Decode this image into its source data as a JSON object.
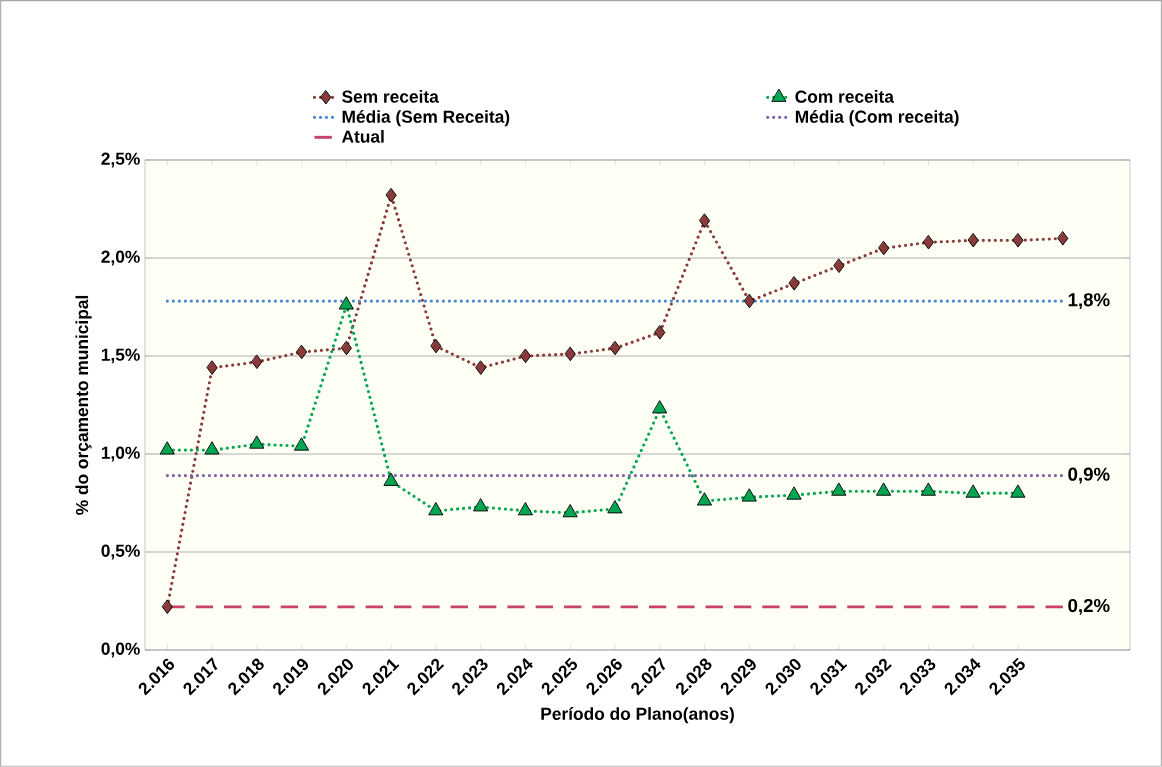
{
  "chart_data": {
    "type": "line",
    "xlabel": "Período do Plano(anos)",
    "ylabel": "% do orçamento municipal",
    "categories": [
      "2.016",
      "2.017",
      "2.018",
      "2.019",
      "2.020",
      "2.021",
      "2.022",
      "2.023",
      "2.024",
      "2.025",
      "2.026",
      "2.027",
      "2.028",
      "2.029",
      "2.030",
      "2.031",
      "2.032",
      "2.033",
      "2.034",
      "2.035",
      null,
      null
    ],
    "series": [
      {
        "name": "Sem receita",
        "color": "#8b3a3a",
        "marker": "diamond",
        "line_style": "dotted",
        "values": [
          0.22,
          1.44,
          1.47,
          1.52,
          1.54,
          2.32,
          1.55,
          1.44,
          1.5,
          1.51,
          1.54,
          1.62,
          2.19,
          1.78,
          1.87,
          1.96,
          2.05,
          2.08,
          2.09,
          2.09,
          2.1,
          null
        ]
      },
      {
        "name": "Com  receita",
        "color": "#00a650",
        "marker": "triangle",
        "line_style": "dotted",
        "values": [
          1.02,
          1.02,
          1.05,
          1.04,
          1.76,
          0.86,
          0.71,
          0.73,
          0.71,
          0.7,
          0.72,
          1.23,
          0.76,
          0.78,
          0.79,
          0.81,
          0.81,
          0.81,
          0.8,
          0.8,
          null,
          null
        ]
      },
      {
        "name": "Média  (Sem Receita)",
        "color": "#4a86d8",
        "marker": "none",
        "line_style": "dotted",
        "values": [
          1.78,
          1.78,
          1.78,
          1.78,
          1.78,
          1.78,
          1.78,
          1.78,
          1.78,
          1.78,
          1.78,
          1.78,
          1.78,
          1.78,
          1.78,
          1.78,
          1.78,
          1.78,
          1.78,
          1.78,
          1.78,
          null
        ],
        "value_labels": [
          null,
          null,
          null,
          null,
          null,
          null,
          null,
          null,
          null,
          null,
          null,
          null,
          null,
          null,
          null,
          null,
          null,
          null,
          null,
          null,
          "1,8%",
          null
        ]
      },
      {
        "name": "Média (Com receita)",
        "color": "#7f5fa8",
        "marker": "none",
        "line_style": "dotted",
        "values": [
          0.89,
          0.89,
          0.89,
          0.89,
          0.89,
          0.89,
          0.89,
          0.89,
          0.89,
          0.89,
          0.89,
          0.89,
          0.89,
          0.89,
          0.89,
          0.89,
          0.89,
          0.89,
          0.89,
          0.89,
          0.89,
          null
        ],
        "value_labels": [
          null,
          null,
          null,
          null,
          null,
          null,
          null,
          null,
          null,
          null,
          null,
          null,
          null,
          null,
          null,
          null,
          null,
          null,
          null,
          null,
          "0,9%",
          null
        ]
      },
      {
        "name": "Atual",
        "color": "#c8426a",
        "marker": "none",
        "line_style": "dashed",
        "values": [
          0.22,
          0.22,
          0.22,
          0.22,
          0.22,
          0.22,
          0.22,
          0.22,
          0.22,
          0.22,
          0.22,
          0.22,
          0.22,
          0.22,
          0.22,
          0.22,
          0.22,
          0.22,
          0.22,
          0.22,
          0.22,
          null
        ],
        "value_labels": [
          null,
          null,
          null,
          null,
          null,
          null,
          null,
          null,
          null,
          null,
          null,
          null,
          null,
          null,
          null,
          null,
          null,
          null,
          null,
          null,
          "0,2%",
          null
        ]
      }
    ],
    "ylim": [
      0,
      2.5
    ],
    "yticks": [
      {
        "value": 0,
        "label": "0,0%"
      },
      {
        "value": 0.5,
        "label": "0,5%"
      },
      {
        "value": 1.0,
        "label": "1,0%"
      },
      {
        "value": 1.5,
        "label": "1,5%"
      },
      {
        "value": 2.0,
        "label": "2,0%"
      },
      {
        "value": 2.5,
        "label": "2,5%"
      }
    ],
    "grid": "y",
    "legend": "top"
  }
}
